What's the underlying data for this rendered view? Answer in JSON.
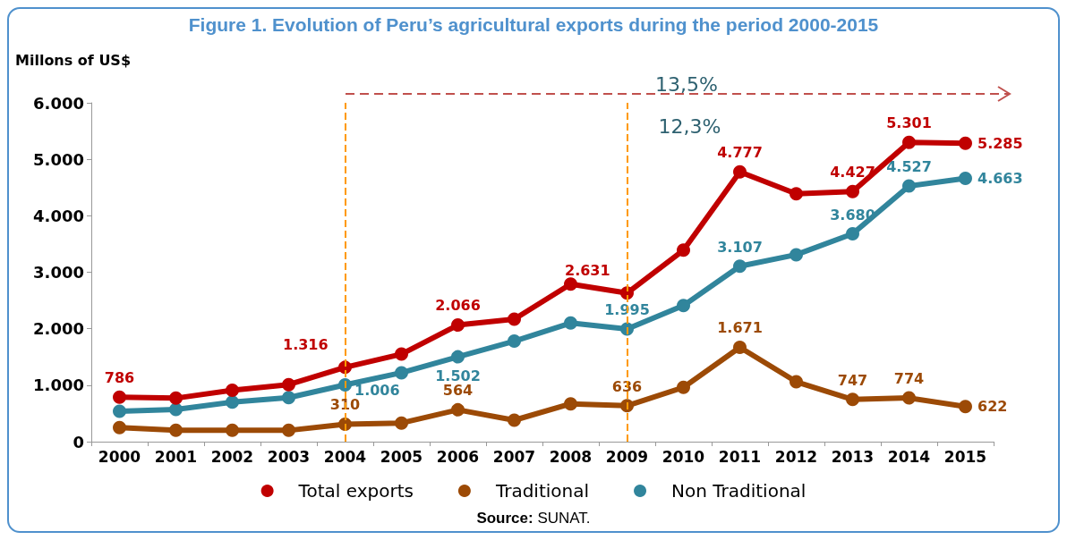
{
  "chart_data": {
    "type": "line",
    "title": "Figure 1. Evolution of Peru’s agricultural exports during the period 2000-2015",
    "ylabel": "Millons of US$",
    "categories": [
      "2000",
      "2001",
      "2002",
      "2003",
      "2004",
      "2005",
      "2006",
      "2007",
      "2008",
      "2009",
      "2010",
      "2011",
      "2012",
      "2013",
      "2014",
      "2015"
    ],
    "series": [
      {
        "name": "Total exports",
        "color": "#c00000",
        "values": [
          786,
          770,
          910,
          1010,
          1316,
          1550,
          2066,
          2170,
          2790,
          2631,
          3390,
          4777,
          4390,
          4427,
          5301,
          5285
        ],
        "value_labels": [
          "786",
          null,
          null,
          null,
          "1.316",
          null,
          "2.066",
          null,
          null,
          "2.631",
          null,
          "4.777",
          null,
          "4.427",
          "5.301",
          "5.285"
        ]
      },
      {
        "name": "Traditional",
        "color": "#9c4a06",
        "values": [
          250,
          200,
          200,
          200,
          310,
          330,
          564,
          380,
          670,
          636,
          960,
          1671,
          1060,
          747,
          774,
          622
        ],
        "value_labels": [
          null,
          null,
          null,
          null,
          "310",
          null,
          "564",
          null,
          null,
          "636",
          null,
          "1.671",
          null,
          "747",
          "774",
          "622"
        ]
      },
      {
        "name": "Non Traditional",
        "color": "#31859c",
        "values": [
          540,
          570,
          700,
          780,
          1006,
          1220,
          1502,
          1780,
          2100,
          1995,
          2410,
          3107,
          3310,
          3680,
          4527,
          4663
        ],
        "value_labels": [
          null,
          null,
          null,
          null,
          "1.006",
          null,
          "1.502",
          null,
          null,
          "1.995",
          null,
          "3.107",
          null,
          "3.680",
          "4.527",
          "4.663"
        ]
      }
    ],
    "ylim": [
      0,
      6000
    ],
    "yticks": [
      0,
      {
        "value": 1000,
        "label": "1.000"
      },
      {
        "value": 2000,
        "label": "2.000"
      },
      {
        "value": 3000,
        "label": "3.000"
      },
      {
        "value": 4000,
        "label": "4.000"
      },
      {
        "value": 5000,
        "label": "5.000"
      },
      {
        "value": 6000,
        "label": "6.000"
      }
    ],
    "ref_lines": [
      {
        "axis": "x",
        "value": "2004",
        "color": "#ff9900",
        "line_style": "dashed"
      },
      {
        "axis": "x",
        "value": "2009",
        "color": "#ff9900",
        "line_style": "dashed"
      }
    ],
    "annotations": [
      "13,5%",
      "12,3%",
      "Source: SUNAT."
    ],
    "grid": false,
    "legend": "bottom",
    "marker": "circle",
    "line_style": "solid"
  }
}
